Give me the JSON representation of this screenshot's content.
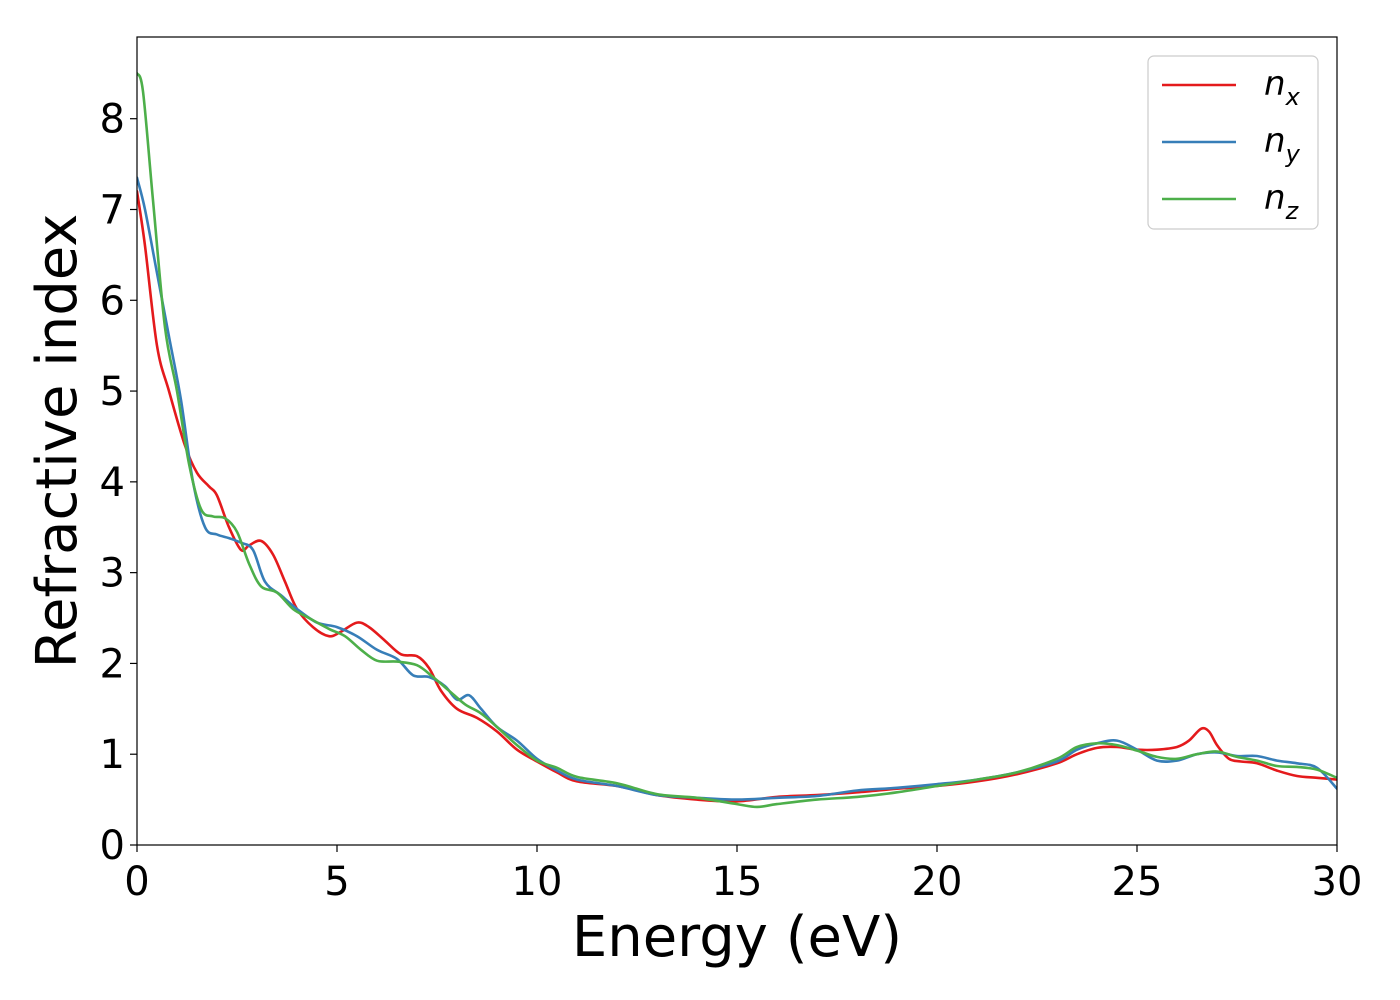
{
  "chart_data": {
    "type": "line",
    "xlabel": "Energy (eV)",
    "ylabel": "Refractive index",
    "xlim": [
      0,
      30
    ],
    "ylim": [
      0,
      8.9
    ],
    "xticks": [
      "0",
      "5",
      "10",
      "15",
      "20",
      "25",
      "30"
    ],
    "yticks": [
      "0",
      "1",
      "2",
      "3",
      "4",
      "5",
      "6",
      "7",
      "8"
    ],
    "grid": false,
    "legend_position": "top-right",
    "series": [
      {
        "name": "n_x",
        "label_base": "n",
        "label_sub": "x",
        "color": "#e41a1c",
        "x": [
          0,
          0.2,
          0.5,
          0.8,
          1.2,
          1.5,
          1.8,
          2.0,
          2.3,
          2.6,
          2.8,
          3.1,
          3.4,
          3.7,
          4.0,
          4.4,
          4.8,
          5.1,
          5.5,
          5.8,
          6.2,
          6.6,
          7.0,
          7.3,
          7.6,
          8.0,
          8.5,
          9.0,
          9.5,
          10.0,
          10.5,
          11.0,
          12.0,
          13.0,
          14.0,
          15.0,
          16.0,
          17.0,
          18.0,
          19.0,
          20.0,
          21.0,
          22.0,
          23.0,
          23.5,
          24.0,
          24.5,
          25.0,
          25.5,
          26.0,
          26.3,
          26.6,
          26.8,
          27.0,
          27.3,
          27.6,
          28.0,
          28.5,
          29.0,
          29.5,
          30.0
        ],
        "y": [
          7.2,
          6.6,
          5.5,
          5.0,
          4.4,
          4.1,
          3.95,
          3.85,
          3.5,
          3.25,
          3.3,
          3.35,
          3.2,
          2.9,
          2.6,
          2.4,
          2.3,
          2.35,
          2.45,
          2.4,
          2.25,
          2.1,
          2.08,
          1.95,
          1.7,
          1.5,
          1.4,
          1.25,
          1.05,
          0.92,
          0.8,
          0.7,
          0.65,
          0.55,
          0.5,
          0.48,
          0.53,
          0.55,
          0.58,
          0.62,
          0.65,
          0.7,
          0.78,
          0.9,
          1.0,
          1.07,
          1.08,
          1.05,
          1.05,
          1.08,
          1.15,
          1.28,
          1.25,
          1.1,
          0.95,
          0.92,
          0.9,
          0.82,
          0.76,
          0.74,
          0.72
        ]
      },
      {
        "name": "n_y",
        "label_base": "n",
        "label_sub": "y",
        "color": "#377eb8",
        "x": [
          0,
          0.2,
          0.5,
          0.8,
          1.1,
          1.4,
          1.7,
          2.0,
          2.3,
          2.6,
          2.9,
          3.2,
          3.6,
          4.0,
          4.5,
          5.0,
          5.5,
          6.0,
          6.5,
          6.9,
          7.3,
          7.7,
          8.0,
          8.3,
          8.6,
          9.0,
          9.5,
          10.0,
          10.5,
          11.0,
          12.0,
          13.0,
          14.0,
          15.0,
          16.0,
          17.0,
          18.0,
          19.0,
          20.0,
          21.0,
          22.0,
          23.0,
          23.5,
          24.0,
          24.5,
          25.0,
          25.5,
          26.0,
          26.5,
          27.0,
          27.5,
          28.0,
          28.5,
          29.0,
          29.5,
          30.0
        ],
        "y": [
          7.35,
          7.0,
          6.3,
          5.6,
          4.9,
          4.0,
          3.5,
          3.42,
          3.38,
          3.33,
          3.25,
          2.9,
          2.75,
          2.6,
          2.45,
          2.4,
          2.3,
          2.15,
          2.05,
          1.87,
          1.85,
          1.75,
          1.6,
          1.65,
          1.5,
          1.3,
          1.15,
          0.95,
          0.82,
          0.72,
          0.65,
          0.55,
          0.52,
          0.5,
          0.52,
          0.54,
          0.6,
          0.63,
          0.67,
          0.72,
          0.8,
          0.92,
          1.05,
          1.12,
          1.15,
          1.05,
          0.93,
          0.93,
          1.0,
          1.02,
          0.98,
          0.98,
          0.93,
          0.9,
          0.85,
          0.62
        ]
      },
      {
        "name": "n_z",
        "label_base": "n",
        "label_sub": "z",
        "color": "#4daf4a",
        "x": [
          0,
          0.15,
          0.4,
          0.7,
          1.0,
          1.3,
          1.6,
          1.9,
          2.2,
          2.5,
          2.8,
          3.1,
          3.5,
          3.9,
          4.3,
          4.8,
          5.2,
          5.6,
          6.0,
          6.5,
          7.0,
          7.4,
          7.8,
          8.2,
          8.6,
          9.0,
          9.5,
          10.0,
          10.5,
          11.0,
          12.0,
          13.0,
          14.0,
          15.0,
          15.5,
          16.0,
          17.0,
          18.0,
          19.0,
          20.0,
          21.0,
          22.0,
          23.0,
          23.5,
          24.0,
          24.5,
          25.0,
          25.5,
          26.0,
          26.5,
          27.0,
          27.5,
          28.0,
          28.5,
          29.0,
          29.5,
          30.0
        ],
        "y": [
          8.5,
          8.3,
          7.1,
          5.7,
          5.0,
          4.2,
          3.7,
          3.62,
          3.6,
          3.45,
          3.1,
          2.85,
          2.78,
          2.6,
          2.5,
          2.38,
          2.3,
          2.15,
          2.03,
          2.02,
          1.98,
          1.85,
          1.7,
          1.55,
          1.45,
          1.3,
          1.1,
          0.93,
          0.85,
          0.75,
          0.68,
          0.56,
          0.52,
          0.45,
          0.42,
          0.45,
          0.5,
          0.53,
          0.58,
          0.65,
          0.72,
          0.8,
          0.95,
          1.08,
          1.12,
          1.1,
          1.04,
          0.97,
          0.95,
          1.0,
          1.03,
          0.97,
          0.93,
          0.87,
          0.86,
          0.83,
          0.74
        ]
      }
    ]
  }
}
